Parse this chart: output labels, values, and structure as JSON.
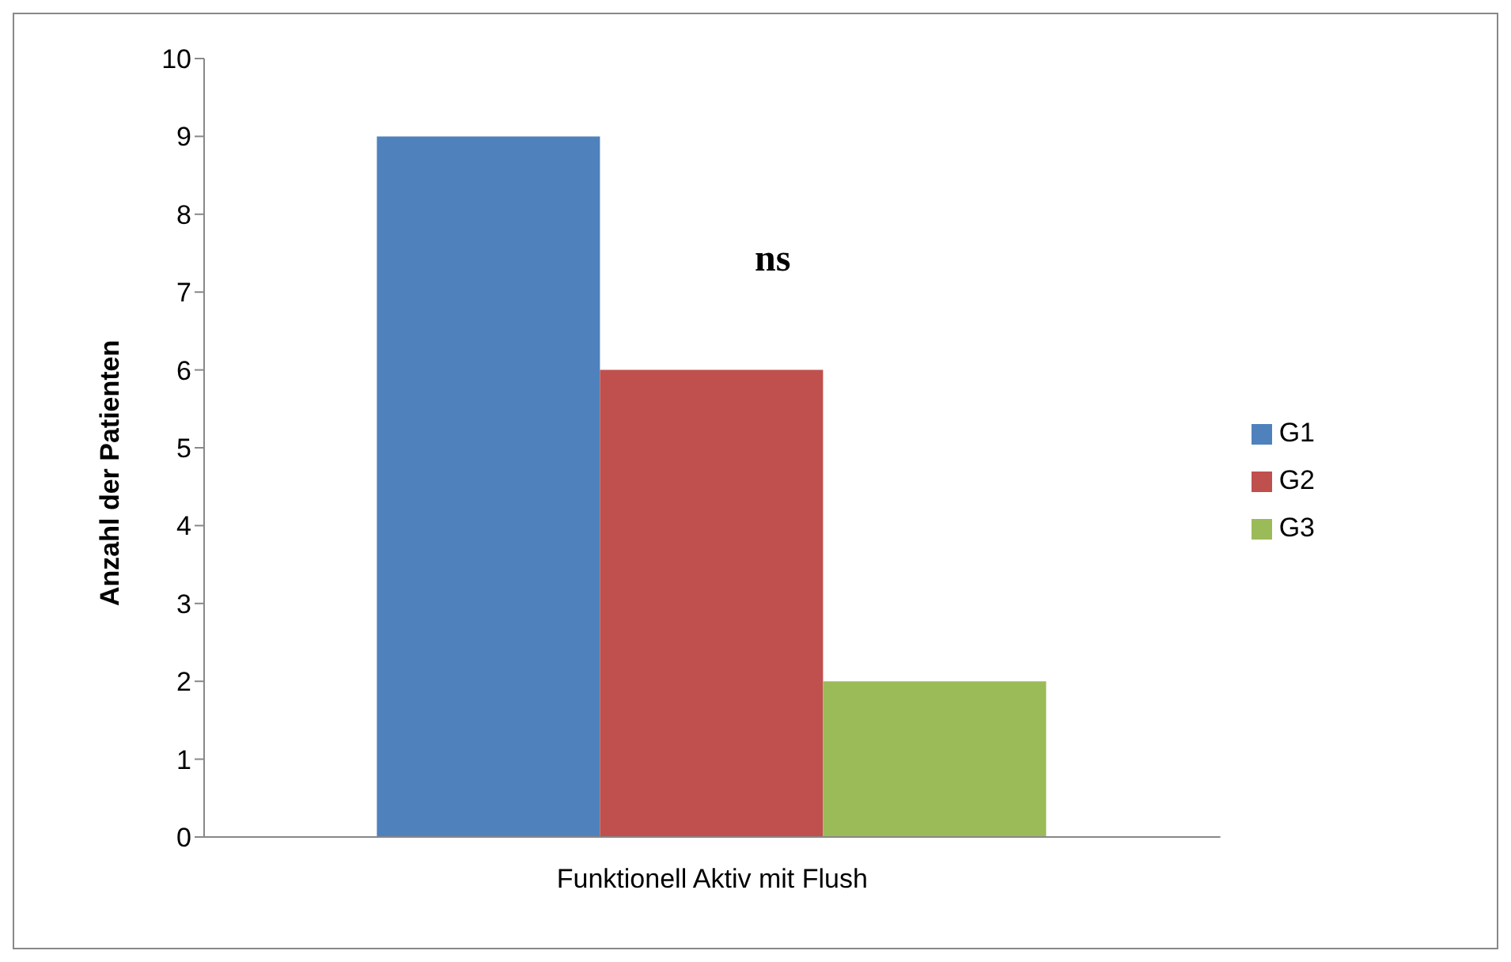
{
  "chart_data": {
    "type": "bar",
    "ylabel": "Anzahl der Patienten",
    "categories": [
      "Funktionell Aktiv mit Flush"
    ],
    "series": [
      {
        "name": "G1",
        "color": "#4f81bd",
        "values": [
          9
        ]
      },
      {
        "name": "G2",
        "color": "#c0504d",
        "values": [
          6
        ]
      },
      {
        "name": "G3",
        "color": "#9bbb59",
        "values": [
          2
        ]
      }
    ],
    "ylim": [
      0,
      10
    ],
    "yticks": [
      0,
      1,
      2,
      3,
      4,
      5,
      6,
      7,
      8,
      9,
      10
    ],
    "grid": false,
    "legend": "right",
    "annotations": [
      "ns"
    ]
  }
}
